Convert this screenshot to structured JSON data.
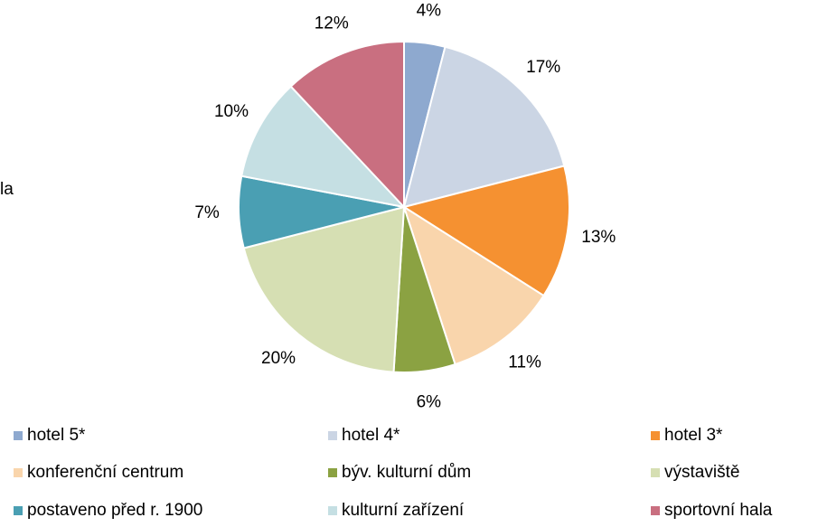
{
  "chart_data": {
    "type": "pie",
    "annotation": "la",
    "categories": [
      "hotel 5*",
      "hotel 4*",
      "hotel 3*",
      "konferenční centrum",
      "býv. kulturní dům",
      "výstaviště",
      "postaveno před r. 1900",
      "kulturní zařízení",
      "sportovní hala"
    ],
    "values": [
      4,
      17,
      13,
      11,
      6,
      20,
      7,
      10,
      12
    ],
    "value_labels": [
      "4%",
      "17%",
      "13%",
      "11%",
      "6%",
      "20%",
      "7%",
      "10%",
      "12%"
    ],
    "colors": [
      "#8EA9CF",
      "#CBD5E4",
      "#F59131",
      "#F9D5AC",
      "#8BA242",
      "#D6DFB3",
      "#4A9FB3",
      "#C5DFE3",
      "#C96F80"
    ],
    "legend": "bottom"
  }
}
